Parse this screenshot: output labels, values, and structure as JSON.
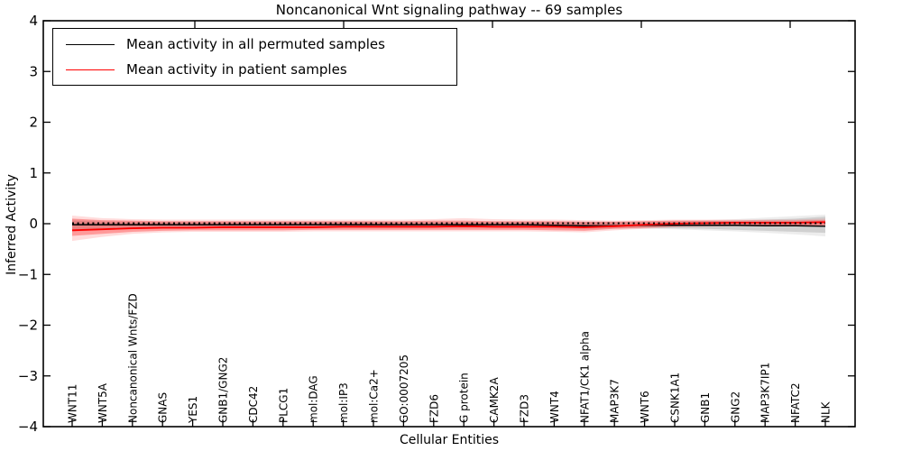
{
  "title": "Noncanonical Wnt signaling pathway -- 69 samples",
  "xlabel": "Cellular Entities",
  "ylabel": "Inferred Activity",
  "legend": {
    "items": [
      {
        "label": "Mean activity in all permuted samples",
        "color": "#000000"
      },
      {
        "label": "Mean activity in patient samples",
        "color": "#ff0000"
      }
    ]
  },
  "chart_data": {
    "type": "line",
    "title": "Noncanonical Wnt signaling pathway -- 69 samples",
    "xlabel": "Cellular Entities",
    "ylabel": "Inferred Activity",
    "ylim": [
      -4,
      4
    ],
    "yticks": [
      4,
      3,
      2,
      1,
      0,
      -1,
      -2,
      -3,
      -4
    ],
    "grid": false,
    "legend_position": "upper left",
    "categories": [
      "WNT11",
      "WNT5A",
      "Noncanonical Wnts/FZD",
      "GNAS",
      "YES1",
      "GNB1/GNG2",
      "CDC42",
      "PLCG1",
      "mol:DAG",
      "mol:IP3",
      "mol:Ca2+",
      "GO:0007205",
      "FZD6",
      "G protein",
      "CAMK2A",
      "FZD3",
      "WNT4",
      "NFAT1/CK1 alpha",
      "MAP3K7",
      "WNT6",
      "CSNK1A1",
      "GNB1",
      "GNG2",
      "MAP3K7IP1",
      "NFATC2",
      "NLK"
    ],
    "series": [
      {
        "name": "Mean activity in all permuted samples",
        "color": "#000000",
        "style": "solid",
        "width": 1.5,
        "values": [
          -0.02,
          -0.02,
          -0.02,
          -0.02,
          -0.02,
          -0.02,
          -0.02,
          -0.02,
          -0.02,
          -0.02,
          -0.02,
          -0.02,
          -0.02,
          -0.02,
          -0.02,
          -0.02,
          -0.03,
          -0.04,
          -0.04,
          -0.03,
          -0.03,
          -0.03,
          -0.03,
          -0.04,
          -0.04,
          -0.05
        ]
      },
      {
        "name": "Mean activity in patient samples",
        "color": "#ff0000",
        "style": "solid",
        "width": 1.8,
        "values": [
          -0.13,
          -0.11,
          -0.09,
          -0.08,
          -0.08,
          -0.07,
          -0.07,
          -0.07,
          -0.07,
          -0.06,
          -0.06,
          -0.06,
          -0.06,
          -0.05,
          -0.06,
          -0.06,
          -0.06,
          -0.07,
          -0.05,
          -0.02,
          0.0,
          0.01,
          0.02,
          0.02,
          0.02,
          0.03
        ]
      },
      {
        "name": "baseline-dotted",
        "color": "#000000",
        "style": "dotted",
        "width": 2.0,
        "values": [
          0.01,
          0.01,
          0.01,
          0.01,
          0.01,
          0.01,
          0.01,
          0.01,
          0.01,
          0.01,
          0.01,
          0.01,
          0.01,
          0.01,
          0.01,
          0.01,
          0.01,
          0.01,
          0.01,
          0.01,
          0.01,
          0.01,
          0.01,
          0.01,
          0.01,
          0.01
        ]
      }
    ],
    "bands": [
      {
        "name": "permuted-outer",
        "color": "#9a9a9a",
        "opacity": 0.18,
        "upper": [
          0.09,
          0.06,
          0.05,
          0.04,
          0.04,
          0.04,
          0.04,
          0.04,
          0.04,
          0.04,
          0.04,
          0.04,
          0.04,
          0.04,
          0.04,
          0.04,
          0.04,
          0.04,
          0.04,
          0.05,
          0.06,
          0.07,
          0.09,
          0.12,
          0.15,
          0.18
        ],
        "lower": [
          -0.16,
          -0.12,
          -0.1,
          -0.09,
          -0.09,
          -0.09,
          -0.09,
          -0.09,
          -0.09,
          -0.09,
          -0.09,
          -0.09,
          -0.09,
          -0.09,
          -0.09,
          -0.09,
          -0.1,
          -0.11,
          -0.1,
          -0.1,
          -0.11,
          -0.13,
          -0.15,
          -0.18,
          -0.21,
          -0.25
        ]
      },
      {
        "name": "permuted-inner",
        "color": "#7d7d7d",
        "opacity": 0.25,
        "upper": [
          0.06,
          0.04,
          0.03,
          0.03,
          0.03,
          0.03,
          0.03,
          0.03,
          0.03,
          0.03,
          0.03,
          0.03,
          0.03,
          0.03,
          0.03,
          0.03,
          0.03,
          0.03,
          0.03,
          0.03,
          0.04,
          0.05,
          0.06,
          0.08,
          0.1,
          0.14
        ],
        "lower": [
          -0.12,
          -0.09,
          -0.08,
          -0.07,
          -0.07,
          -0.07,
          -0.07,
          -0.07,
          -0.07,
          -0.07,
          -0.07,
          -0.07,
          -0.07,
          -0.07,
          -0.07,
          -0.07,
          -0.08,
          -0.09,
          -0.08,
          -0.08,
          -0.09,
          -0.1,
          -0.12,
          -0.14,
          -0.16,
          -0.18
        ]
      },
      {
        "name": "patient-outer",
        "color": "#ff5050",
        "opacity": 0.2,
        "upper": [
          0.16,
          0.11,
          0.09,
          0.08,
          0.08,
          0.08,
          0.08,
          0.08,
          0.08,
          0.08,
          0.08,
          0.08,
          0.09,
          0.11,
          0.09,
          0.08,
          0.08,
          0.07,
          0.06,
          0.07,
          0.08,
          0.08,
          0.08,
          0.08,
          0.08,
          0.1
        ],
        "lower": [
          -0.34,
          -0.26,
          -0.2,
          -0.17,
          -0.16,
          -0.16,
          -0.16,
          -0.16,
          -0.15,
          -0.15,
          -0.15,
          -0.15,
          -0.15,
          -0.15,
          -0.15,
          -0.15,
          -0.16,
          -0.17,
          -0.13,
          -0.1,
          -0.07,
          -0.06,
          -0.05,
          -0.05,
          -0.05,
          -0.04
        ]
      },
      {
        "name": "patient-inner",
        "color": "#ff3030",
        "opacity": 0.38,
        "upper": [
          0.1,
          0.07,
          0.06,
          0.05,
          0.05,
          0.05,
          0.05,
          0.05,
          0.05,
          0.05,
          0.05,
          0.05,
          0.06,
          0.06,
          0.05,
          0.05,
          0.05,
          0.04,
          0.04,
          0.05,
          0.06,
          0.06,
          0.06,
          0.06,
          0.06,
          0.07
        ],
        "lower": [
          -0.24,
          -0.2,
          -0.16,
          -0.14,
          -0.13,
          -0.13,
          -0.13,
          -0.13,
          -0.12,
          -0.12,
          -0.12,
          -0.12,
          -0.12,
          -0.12,
          -0.12,
          -0.12,
          -0.13,
          -0.14,
          -0.1,
          -0.08,
          -0.05,
          -0.04,
          -0.03,
          -0.03,
          -0.03,
          -0.03
        ]
      }
    ]
  }
}
